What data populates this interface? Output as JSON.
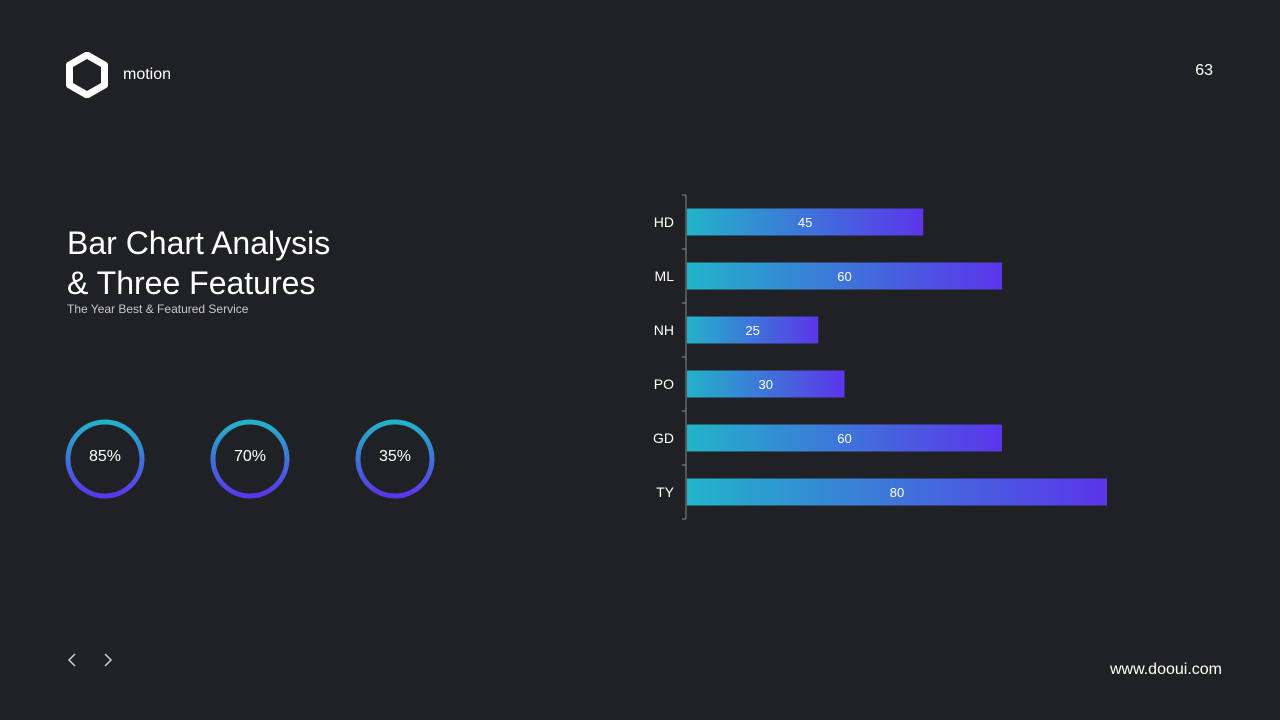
{
  "brand": {
    "name": "motion",
    "logo_icon": "hexagon-icon"
  },
  "page_number": "63",
  "heading": {
    "line1": "Bar Chart Analysis",
    "line2": "& Three Features",
    "subtitle": "The Year Best & Featured Service"
  },
  "progress_rings": [
    {
      "label": "85%",
      "value": 85
    },
    {
      "label": "70%",
      "value": 70
    },
    {
      "label": "35%",
      "value": 35
    }
  ],
  "chart_data": {
    "type": "bar",
    "orientation": "horizontal",
    "categories": [
      "HD",
      "ML",
      "NH",
      "PO",
      "GD",
      "TY"
    ],
    "values": [
      45,
      60,
      25,
      30,
      60,
      80
    ],
    "xlim": [
      0,
      100
    ],
    "grid": false,
    "data_labels": true,
    "gradient": [
      "#22b3c9",
      "#5b35ea"
    ]
  },
  "footer": {
    "prev_icon": "chevron-left-icon",
    "next_icon": "chevron-right-icon",
    "website": "www.dooui.com"
  },
  "colors": {
    "background": "#202125",
    "text": "#ffffff",
    "accent_start": "#22b3c9",
    "accent_end": "#5b35ea"
  }
}
